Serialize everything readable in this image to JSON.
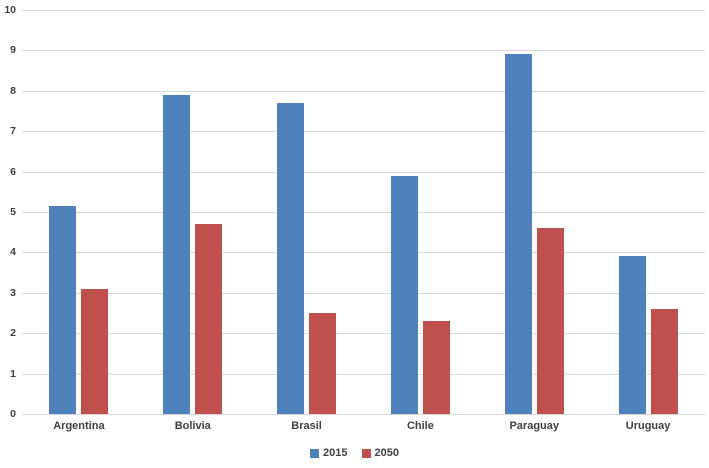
{
  "chart_data": {
    "type": "bar",
    "title": "",
    "xlabel": "",
    "ylabel": "",
    "categories": [
      "Argentina",
      "Bolivia",
      "Brasil",
      "Chile",
      "Paraguay",
      "Uruguay"
    ],
    "series": [
      {
        "name": "2015",
        "color": "#4F81BD",
        "values": [
          5.15,
          7.9,
          7.7,
          5.9,
          8.9,
          3.9
        ]
      },
      {
        "name": "2050",
        "color": "#C0504D",
        "values": [
          3.1,
          4.7,
          2.5,
          2.3,
          4.6,
          2.6
        ]
      }
    ],
    "ylim": [
      0,
      10
    ],
    "ytick_step": 1,
    "ytick_labels": [
      "0",
      "1",
      "2",
      "3",
      "4",
      "5",
      "6",
      "7",
      "8",
      "9",
      "10"
    ],
    "grid": "horizontal",
    "gridline_color": "#d9d9d9",
    "text_color": "#404040",
    "legend_position": "bottom"
  }
}
